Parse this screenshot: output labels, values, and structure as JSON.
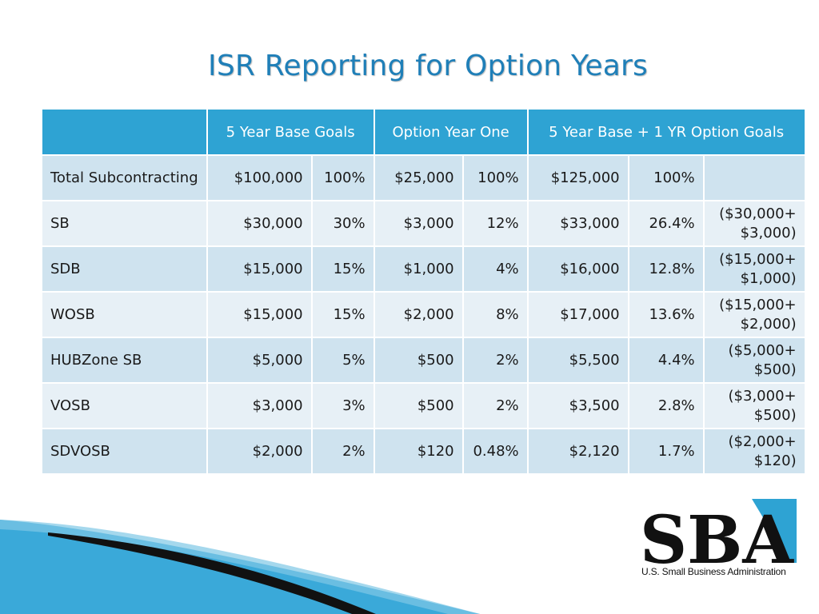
{
  "title": "ISR Reporting for Option Years",
  "table": {
    "headers": [
      "",
      "5 Year Base Goals",
      "Option Year One",
      "5 Year Base + 1 YR Option Goals"
    ],
    "rows": [
      {
        "label": "Total Subcontracting",
        "base": "$100,000",
        "base_pct": "100%",
        "opt": "$25,000",
        "opt_pct": "100%",
        "total": "$125,000",
        "total_pct": "100%",
        "calc1": "",
        "calc2": ""
      },
      {
        "label": "SB",
        "base": "$30,000",
        "base_pct": "30%",
        "opt": "$3,000",
        "opt_pct": "12%",
        "total": "$33,000",
        "total_pct": "26.4%",
        "calc1": "($30,000+",
        "calc2": "$3,000)"
      },
      {
        "label": "SDB",
        "base": "$15,000",
        "base_pct": "15%",
        "opt": "$1,000",
        "opt_pct": "4%",
        "total": "$16,000",
        "total_pct": "12.8%",
        "calc1": "($15,000+",
        "calc2": "$1,000)"
      },
      {
        "label": "WOSB",
        "base": "$15,000",
        "base_pct": "15%",
        "opt": "$2,000",
        "opt_pct": "8%",
        "total": "$17,000",
        "total_pct": "13.6%",
        "calc1": "($15,000+",
        "calc2": "$2,000)"
      },
      {
        "label": "HUBZone SB",
        "base": "$5,000",
        "base_pct": "5%",
        "opt": "$500",
        "opt_pct": "2%",
        "total": "$5,500",
        "total_pct": "4.4%",
        "calc1": "($5,000+",
        "calc2": "$500)"
      },
      {
        "label": "VOSB",
        "base": "$3,000",
        "base_pct": "3%",
        "opt": "$500",
        "opt_pct": "2%",
        "total": "$3,500",
        "total_pct": "2.8%",
        "calc1": "($3,000+",
        "calc2": "$500)"
      },
      {
        "label": "SDVOSB",
        "base": "$2,000",
        "base_pct": "2%",
        "opt": "$120",
        "opt_pct": "0.48%",
        "total": "$2,120",
        "total_pct": "1.7%",
        "calc1": "($2,000+",
        "calc2": "$120)"
      }
    ]
  },
  "logo": {
    "mark": "SBA",
    "tagline": "U.S. Small Business Administration"
  },
  "colors": {
    "title": "#1f7fb8",
    "header_fill": "#2ea3d3",
    "row_dark": "#cfe3ef",
    "row_light": "#e7f0f6",
    "swoosh_blue": "#3aa9d9",
    "swoosh_black": "#111111"
  }
}
